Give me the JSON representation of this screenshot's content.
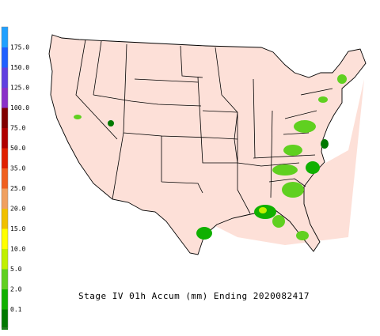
{
  "title": "Stage IV 01h Accum (mm) Ending 2020082417",
  "legend": {
    "top_color": "#20a0ff",
    "below_color": "#fbe4dc",
    "levels": [
      {
        "label": "175.0",
        "color": "#2060ff"
      },
      {
        "label": "150.0",
        "color": "#6040e0"
      },
      {
        "label": "125.0",
        "color": "#8a30c8"
      },
      {
        "label": "100.0",
        "color": "#800000"
      },
      {
        "label": "75.0",
        "color": "#b00000"
      },
      {
        "label": "50.0",
        "color": "#e02000"
      },
      {
        "label": "35.0",
        "color": "#f06020"
      },
      {
        "label": "25.0",
        "color": "#f0a060"
      },
      {
        "label": "20.0",
        "color": "#f0c000"
      },
      {
        "label": "15.0",
        "color": "#ffff00"
      },
      {
        "label": "10.0",
        "color": "#c0f000"
      },
      {
        "label": "5.0",
        "color": "#60d020"
      },
      {
        "label": "2.0",
        "color": "#10b000"
      },
      {
        "label": "0.1",
        "color": "#007800"
      }
    ]
  }
}
